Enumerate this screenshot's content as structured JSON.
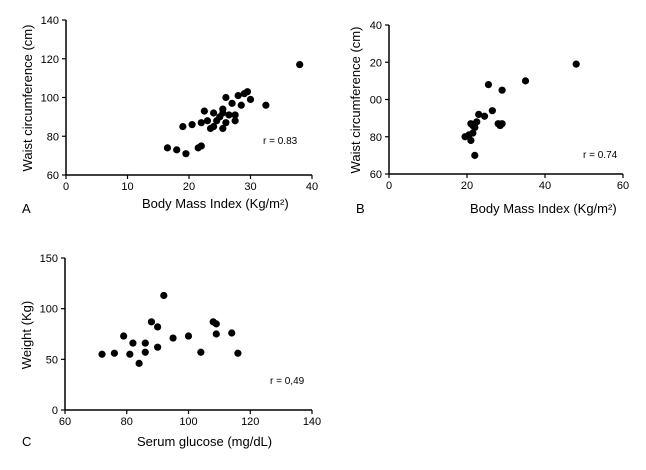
{
  "chart_data": [
    {
      "type": "scatter",
      "panel_label": "A",
      "xlabel": "Body Mass Index (Kg/m²)",
      "ylabel": "Waist circumference (cm)",
      "xlim": [
        0,
        40
      ],
      "ylim": [
        60,
        140
      ],
      "xticks": [
        "0",
        "10",
        "20",
        "30",
        "40"
      ],
      "yticks": [
        "60",
        "80",
        "100",
        "120",
        "140"
      ],
      "annotation": "r = 0.83",
      "grid": false,
      "points": [
        [
          16.5,
          74
        ],
        [
          18,
          73
        ],
        [
          19,
          85
        ],
        [
          19.5,
          71
        ],
        [
          20.5,
          86
        ],
        [
          21.5,
          74
        ],
        [
          22,
          75
        ],
        [
          22,
          87
        ],
        [
          22.5,
          93
        ],
        [
          23,
          88
        ],
        [
          23.5,
          84
        ],
        [
          24,
          92
        ],
        [
          24,
          85
        ],
        [
          24.5,
          88
        ],
        [
          25,
          90
        ],
        [
          25.5,
          84
        ],
        [
          25.5,
          92
        ],
        [
          25.5,
          94
        ],
        [
          26,
          87
        ],
        [
          26,
          100
        ],
        [
          26.5,
          91
        ],
        [
          27,
          97
        ],
        [
          27.5,
          88
        ],
        [
          27.5,
          91
        ],
        [
          28,
          101
        ],
        [
          28.5,
          96
        ],
        [
          29,
          102
        ],
        [
          29.5,
          103
        ],
        [
          30,
          99
        ],
        [
          32.5,
          96
        ],
        [
          38,
          117
        ]
      ]
    },
    {
      "type": "scatter",
      "panel_label": "B",
      "xlabel": "Body Mass Index (Kg/m²)",
      "ylabel": "Waist circumference (cm)",
      "xlim": [
        0,
        60
      ],
      "ylim": [
        60,
        140
      ],
      "xticks": [
        "0",
        "20",
        "40",
        "60"
      ],
      "yticks": [
        "60",
        "80",
        "00",
        "20",
        "40"
      ],
      "annotation": "r = 0.74",
      "grid": false,
      "points": [
        [
          19.5,
          80
        ],
        [
          20.5,
          81
        ],
        [
          21,
          78
        ],
        [
          21,
          87
        ],
        [
          21.5,
          82
        ],
        [
          21.5,
          86
        ],
        [
          22,
          70
        ],
        [
          22,
          85
        ],
        [
          22.5,
          88
        ],
        [
          23,
          92
        ],
        [
          24.5,
          91
        ],
        [
          25.5,
          108
        ],
        [
          26.5,
          94
        ],
        [
          28,
          87
        ],
        [
          28.5,
          86
        ],
        [
          29,
          87
        ],
        [
          29,
          105
        ],
        [
          35,
          110
        ],
        [
          48,
          119
        ]
      ]
    },
    {
      "type": "scatter",
      "panel_label": "C",
      "xlabel": "Serum glucose (mg/dL)",
      "ylabel": "Weight (Kg)",
      "xlim": [
        60,
        140
      ],
      "ylim": [
        0,
        150
      ],
      "xticks": [
        "60",
        "80",
        "100",
        "120",
        "140"
      ],
      "yticks": [
        "0",
        "50",
        "100",
        "150"
      ],
      "annotation": "r = 0,49",
      "grid": false,
      "points": [
        [
          72,
          55
        ],
        [
          76,
          56
        ],
        [
          79,
          73
        ],
        [
          81,
          55
        ],
        [
          82,
          66
        ],
        [
          84,
          46
        ],
        [
          86,
          57
        ],
        [
          86,
          66
        ],
        [
          88,
          87
        ],
        [
          90,
          62
        ],
        [
          90,
          82
        ],
        [
          92,
          113
        ],
        [
          95,
          71
        ],
        [
          100,
          73
        ],
        [
          104,
          57
        ],
        [
          108,
          87
        ],
        [
          109,
          75
        ],
        [
          109,
          85
        ],
        [
          114,
          76
        ],
        [
          116,
          56
        ]
      ]
    }
  ]
}
